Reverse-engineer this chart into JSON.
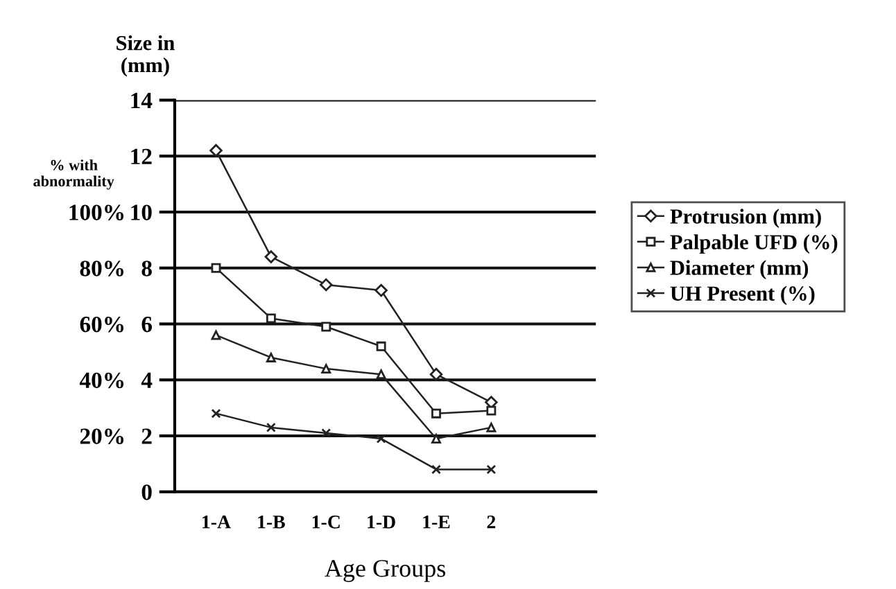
{
  "chart_data": {
    "type": "line",
    "xlabel": "Age Groups",
    "ylabel": "Size in\n(mm)",
    "y2label": "% with\nabnormality",
    "categories": [
      "1-A",
      "1-B",
      "1-C",
      "1-D",
      "1-E",
      "2"
    ],
    "series": [
      {
        "name": "Protrusion (mm)",
        "color": "#222222",
        "marker": "diamond",
        "values": [
          12.2,
          8.4,
          7.4,
          7.2,
          4.2,
          3.2
        ]
      },
      {
        "name": "Palpable UFD (%)",
        "color": "#222222",
        "marker": "square",
        "axis": "y2",
        "values": [
          80,
          62,
          59,
          52,
          28,
          29
        ]
      },
      {
        "name": "Diameter (mm)",
        "color": "#222222",
        "marker": "triangle",
        "values": [
          5.6,
          4.8,
          4.4,
          4.2,
          1.9,
          2.3
        ]
      },
      {
        "name": "UH Present (%)",
        "color": "#222222",
        "marker": "cross",
        "axis": "y2",
        "values": [
          28,
          23,
          21,
          19,
          8,
          8
        ]
      }
    ],
    "ylim": [
      0,
      14
    ],
    "yticks": [
      0,
      2,
      4,
      6,
      8,
      10,
      12,
      14
    ],
    "y2lim": [
      0,
      140
    ],
    "y2ticks": [
      {
        "value": 20,
        "label": "20%"
      },
      {
        "value": 40,
        "label": "40%"
      },
      {
        "value": 60,
        "label": "60%"
      },
      {
        "value": 80,
        "label": "80%"
      },
      {
        "value": 100,
        "label": "100%"
      }
    ],
    "grid": "y",
    "legend": "right",
    "line_style": "solid"
  }
}
